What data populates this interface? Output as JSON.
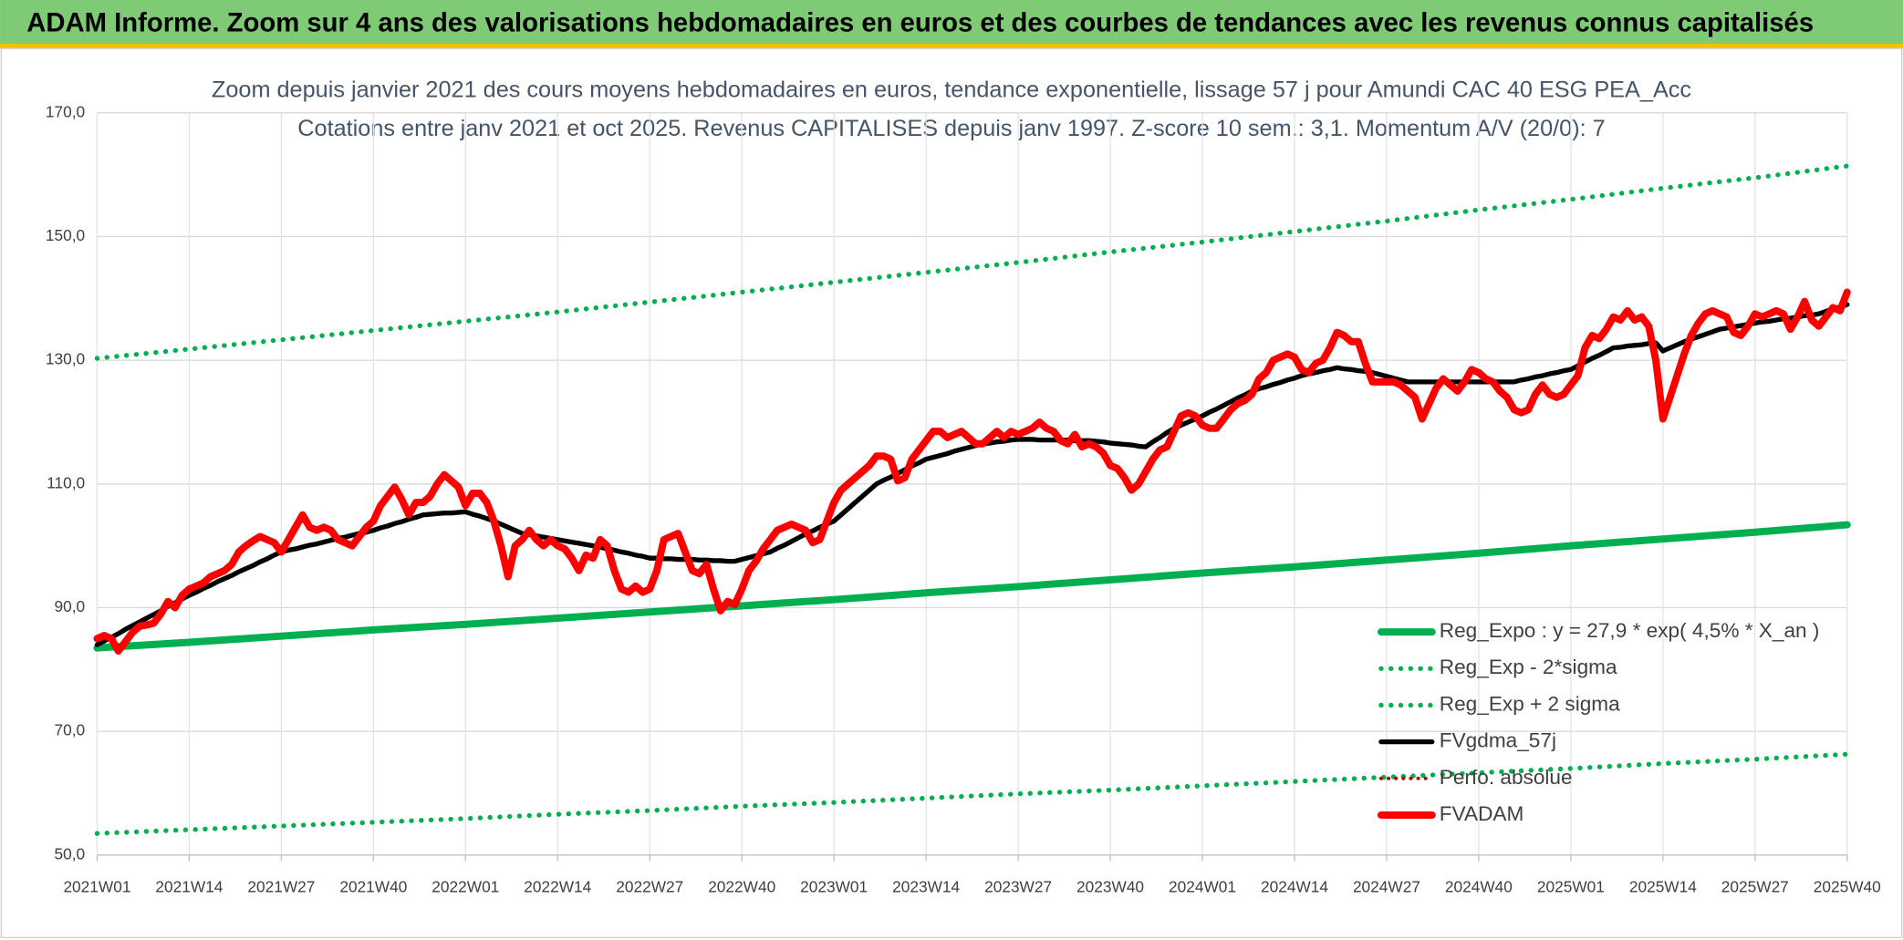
{
  "chart_data": {
    "type": "line",
    "header": "ADAM Informe. Zoom sur 4 ans des valorisations hebdomadaires en euros et des courbes de tendances avec les revenus connus capitalisés",
    "title": [
      "Zoom depuis janvier 2021 des cours moyens hebdomadaires en euros, tendance exponentielle, lissage 57 j pour Amundi CAC 40 ESG PEA_Acc",
      "Cotations entre janv 2021 et oct 2025. Revenus CAPITALISES depuis janv 1997. Z-score 10 sem.: 3,1. Momentum A/V (20/0): 7"
    ],
    "categories": [
      "2021W01",
      null,
      null,
      null,
      null,
      null,
      null,
      null,
      null,
      null,
      null,
      null,
      null,
      "2021W14",
      null,
      null,
      null,
      null,
      null,
      null,
      null,
      null,
      null,
      null,
      null,
      null,
      "2021W27",
      null,
      null,
      null,
      null,
      null,
      null,
      null,
      null,
      null,
      null,
      null,
      null,
      "2021W40",
      null,
      null,
      null,
      null,
      null,
      null,
      null,
      null,
      null,
      null,
      null,
      null,
      "2022W01",
      null,
      null,
      null,
      null,
      null,
      null,
      null,
      null,
      null,
      null,
      null,
      null,
      "2022W14",
      null,
      null,
      null,
      null,
      null,
      null,
      null,
      null,
      null,
      null,
      null,
      null,
      "2022W27",
      null,
      null,
      null,
      null,
      null,
      null,
      null,
      null,
      null,
      null,
      null,
      null,
      "2022W40",
      null,
      null,
      null,
      null,
      null,
      null,
      null,
      null,
      null,
      null,
      null,
      null,
      "2023W01",
      null,
      null,
      null,
      null,
      null,
      null,
      null,
      null,
      null,
      null,
      null,
      null,
      "2023W14",
      null,
      null,
      null,
      null,
      null,
      null,
      null,
      null,
      null,
      null,
      null,
      null,
      "2023W27",
      null,
      null,
      null,
      null,
      null,
      null,
      null,
      null,
      null,
      null,
      null,
      null,
      "2023W40",
      null,
      null,
      null,
      null,
      null,
      null,
      null,
      null,
      null,
      null,
      null,
      null,
      "2024W01",
      null,
      null,
      null,
      null,
      null,
      null,
      null,
      null,
      null,
      null,
      null,
      null,
      "2024W14",
      null,
      null,
      null,
      null,
      null,
      null,
      null,
      null,
      null,
      null,
      null,
      null,
      "2024W27",
      null,
      null,
      null,
      null,
      null,
      null,
      null,
      null,
      null,
      null,
      null,
      null,
      "2024W40",
      null,
      null,
      null,
      null,
      null,
      null,
      null,
      null,
      null,
      null,
      null,
      null,
      "2025W01",
      null,
      null,
      null,
      null,
      null,
      null,
      null,
      null,
      null,
      null,
      null,
      null,
      "2025W14",
      null,
      null,
      null,
      null,
      null,
      null,
      null,
      null,
      null,
      null,
      null,
      null,
      "2025W27",
      null,
      null,
      null,
      null,
      null,
      null,
      null,
      null,
      null,
      null,
      null,
      null,
      "2025W40"
    ],
    "ylim": [
      50,
      170
    ],
    "yticks": [
      {
        "value": 50,
        "label": "50,0"
      },
      {
        "value": 70,
        "label": "70,0"
      },
      {
        "value": 90,
        "label": "90,0"
      },
      {
        "value": 110,
        "label": "110,0"
      },
      {
        "value": 130,
        "label": "130,0"
      },
      {
        "value": 150,
        "label": "150,0"
      },
      {
        "value": 170,
        "label": "170,0"
      }
    ],
    "grid": true,
    "legend": "lower right",
    "series": [
      {
        "name": "Reg_Expo : y = 27,9 * exp( 4,5% *  X_an )",
        "color": "#00b050",
        "style": "solid",
        "width": 6,
        "x": [
          "2021W01",
          "2021W14",
          "2021W27",
          "2021W40",
          "2022W01",
          "2022W14",
          "2022W27",
          "2022W40",
          "2023W01",
          "2023W14",
          "2023W27",
          "2023W40",
          "2024W01",
          "2024W14",
          "2024W27",
          "2024W40",
          "2025W01",
          "2025W14",
          "2025W27",
          "2025W40"
        ],
        "values": [
          83.5,
          84.4,
          85.4,
          86.4,
          87.3,
          88.3,
          89.3,
          90.3,
          91.3,
          92.4,
          93.4,
          94.5,
          95.6,
          96.6,
          97.7,
          98.8,
          100,
          101.1,
          102.2,
          103.4
        ]
      },
      {
        "name": "Reg_Exp - 2*sigma",
        "color": "#00b050",
        "style": "dotted",
        "width": 4,
        "x": [
          "2021W01",
          "2021W14",
          "2021W27",
          "2021W40",
          "2022W01",
          "2022W14",
          "2022W27",
          "2022W40",
          "2023W01",
          "2023W14",
          "2023W27",
          "2023W40",
          "2024W01",
          "2024W14",
          "2024W27",
          "2024W40",
          "2025W01",
          "2025W14",
          "2025W27",
          "2025W40"
        ],
        "values": [
          53.5,
          54.1,
          54.7,
          55.3,
          55.9,
          56.6,
          57.2,
          57.9,
          58.5,
          59.2,
          59.9,
          60.5,
          61.2,
          61.9,
          62.6,
          63.3,
          64,
          64.8,
          65.5,
          66.3
        ]
      },
      {
        "name": "Reg_Exp + 2 sigma",
        "color": "#00b050",
        "style": "dotted",
        "width": 4,
        "x": [
          "2021W01",
          "2021W14",
          "2021W27",
          "2021W40",
          "2022W01",
          "2022W14",
          "2022W27",
          "2022W40",
          "2023W01",
          "2023W14",
          "2023W27",
          "2023W40",
          "2024W01",
          "2024W14",
          "2024W27",
          "2024W40",
          "2025W01",
          "2025W14",
          "2025W27",
          "2025W40"
        ],
        "values": [
          130.3,
          131.8,
          133.3,
          134.8,
          136.3,
          137.8,
          139.4,
          141,
          142.6,
          144.2,
          145.8,
          147.5,
          149.1,
          150.8,
          152.5,
          154.3,
          156,
          157.8,
          159.5,
          161.4
        ]
      },
      {
        "name": "FVgdma_57j",
        "color": "#000000",
        "style": "solid",
        "width": 4,
        "values": [
          84,
          84.6,
          85.2,
          85.8,
          86.5,
          87.1,
          87.7,
          88.3,
          88.9,
          89.5,
          90.2,
          90.8,
          91.4,
          92,
          92.5,
          93.1,
          93.6,
          94.2,
          94.7,
          95.2,
          95.8,
          96.3,
          96.8,
          97.4,
          97.9,
          98.5,
          99,
          99.3,
          99.5,
          99.8,
          100.1,
          100.3,
          100.6,
          100.9,
          101.2,
          101.4,
          101.7,
          102,
          102.2,
          102.5,
          102.9,
          103.2,
          103.6,
          103.9,
          104.3,
          104.6,
          105,
          105.1,
          105.2,
          105.3,
          105.3,
          105.4,
          105.5,
          105.1,
          104.8,
          104.4,
          104,
          103.5,
          103,
          102.5,
          102,
          101.8,
          101.6,
          101.4,
          101.2,
          101,
          100.8,
          100.6,
          100.4,
          100.2,
          100,
          99.8,
          99.5,
          99.3,
          99,
          98.8,
          98.5,
          98.3,
          98,
          98,
          97.9,
          97.9,
          97.8,
          97.8,
          97.8,
          97.7,
          97.7,
          97.6,
          97.6,
          97.5,
          97.5,
          97.8,
          98.1,
          98.4,
          98.7,
          99,
          99.6,
          100.1,
          100.7,
          101.3,
          101.9,
          102.4,
          103,
          103.5,
          104,
          105,
          106,
          107,
          108,
          109,
          110,
          110.6,
          111.1,
          111.7,
          112.3,
          112.9,
          113.4,
          114,
          114.3,
          114.6,
          114.9,
          115.3,
          115.6,
          115.9,
          116.2,
          116.5,
          116.6,
          116.8,
          116.9,
          117.1,
          117.2,
          117.2,
          117.2,
          117.1,
          117.1,
          117.1,
          117.1,
          117.1,
          117,
          117,
          117,
          116.9,
          116.8,
          116.6,
          116.5,
          116.4,
          116.3,
          116.1,
          116,
          116.8,
          117.5,
          118.3,
          119,
          119.5,
          120,
          120.5,
          121,
          121.6,
          122.1,
          122.7,
          123.3,
          123.9,
          124.4,
          125,
          125.4,
          125.7,
          126.1,
          126.4,
          126.8,
          127.1,
          127.5,
          127.8,
          128,
          128.3,
          128.5,
          128.8,
          128.6,
          128.5,
          128.3,
          128.2,
          128,
          127.7,
          127.4,
          127.1,
          126.8,
          126.5,
          126.5,
          126.5,
          126.5,
          126.5,
          126.5,
          126.5,
          126.5,
          126.5,
          126.5,
          126.5,
          126.5,
          126.5,
          126.5,
          126.5,
          126.5,
          126.8,
          127,
          127.3,
          127.5,
          127.8,
          128,
          128.3,
          128.5,
          129.1,
          129.7,
          130.3,
          130.8,
          131.4,
          132,
          132.1,
          132.3,
          132.4,
          132.5,
          132.7,
          132.8,
          131.5,
          132,
          132.5,
          133,
          133.4,
          133.8,
          134.2,
          134.6,
          135,
          135.2,
          135.4,
          135.6,
          135.8,
          136,
          136.2,
          136.3,
          136.5,
          136.7,
          136.8,
          137,
          137.2,
          137.3,
          137.5,
          137.9,
          138.3,
          138.6,
          139
        ]
      },
      {
        "name": "Perfo. absolue",
        "color": "#c00000",
        "style": "dotted",
        "width": 3
      },
      {
        "name": "FVADAM",
        "color": "#ff0000",
        "style": "solid",
        "width": 6,
        "values": [
          85,
          85.5,
          85,
          83,
          84.5,
          86,
          87,
          87.2,
          87.5,
          89,
          91,
          90,
          92,
          93,
          93.5,
          94,
          95,
          95.5,
          96,
          97,
          99,
          100,
          100.8,
          101.5,
          101,
          100.5,
          99,
          101,
          103,
          105,
          103,
          102.5,
          103,
          102.5,
          101,
          100.5,
          100,
          101.5,
          103,
          104,
          106.5,
          108,
          109.5,
          107.5,
          105,
          107,
          107,
          108,
          110,
          111.5,
          110.5,
          109.5,
          106.5,
          108.5,
          108.5,
          107,
          104,
          100,
          95,
          100,
          101,
          102.5,
          101,
          100,
          101,
          100,
          99.5,
          98,
          96,
          98.5,
          98,
          101,
          100,
          96,
          93,
          92.5,
          93.5,
          92.5,
          93,
          96,
          101,
          101.5,
          102,
          99,
          96,
          95.5,
          97,
          93,
          89.5,
          91,
          90.5,
          93,
          96,
          97.5,
          99.5,
          101,
          102.5,
          103,
          103.5,
          103,
          102.5,
          100.5,
          101,
          104,
          107,
          109,
          110,
          111,
          112,
          113,
          114.5,
          114.5,
          114,
          110.5,
          111,
          114,
          115.5,
          117,
          118.5,
          118.5,
          117.5,
          118,
          118.5,
          117.5,
          116.5,
          116.5,
          117.5,
          118.5,
          117.5,
          118.5,
          118,
          118.5,
          119,
          120,
          119,
          118.5,
          117,
          116.5,
          118,
          116,
          116.5,
          116,
          115,
          113,
          112.5,
          111,
          109,
          110,
          112,
          114,
          115.5,
          116,
          118.5,
          121,
          121.5,
          121,
          119.5,
          119,
          119,
          120.5,
          122,
          123,
          123.5,
          124.5,
          127,
          128,
          130,
          130.5,
          131,
          130.5,
          128.5,
          128,
          129.5,
          130,
          132,
          134.5,
          134,
          133,
          133,
          129.5,
          126.5,
          126.5,
          126.5,
          126.5,
          126,
          125,
          124,
          120.5,
          123,
          125.5,
          127,
          126,
          125,
          126.5,
          128.5,
          128,
          127,
          126.5,
          125,
          124,
          122,
          121.5,
          122,
          124.5,
          126,
          124.5,
          124,
          124.5,
          126,
          127.5,
          132,
          134,
          133.5,
          135,
          137,
          136.5,
          138,
          136.5,
          137,
          135.5,
          130,
          120.5,
          124,
          127.5,
          131,
          134,
          136,
          137.5,
          138,
          137.5,
          137,
          134.5,
          134,
          135.5,
          137.5,
          137,
          137.5,
          138,
          137.5,
          135,
          137,
          139.5,
          136.5,
          135.5,
          137,
          138.5,
          138,
          141
        ]
      }
    ]
  }
}
